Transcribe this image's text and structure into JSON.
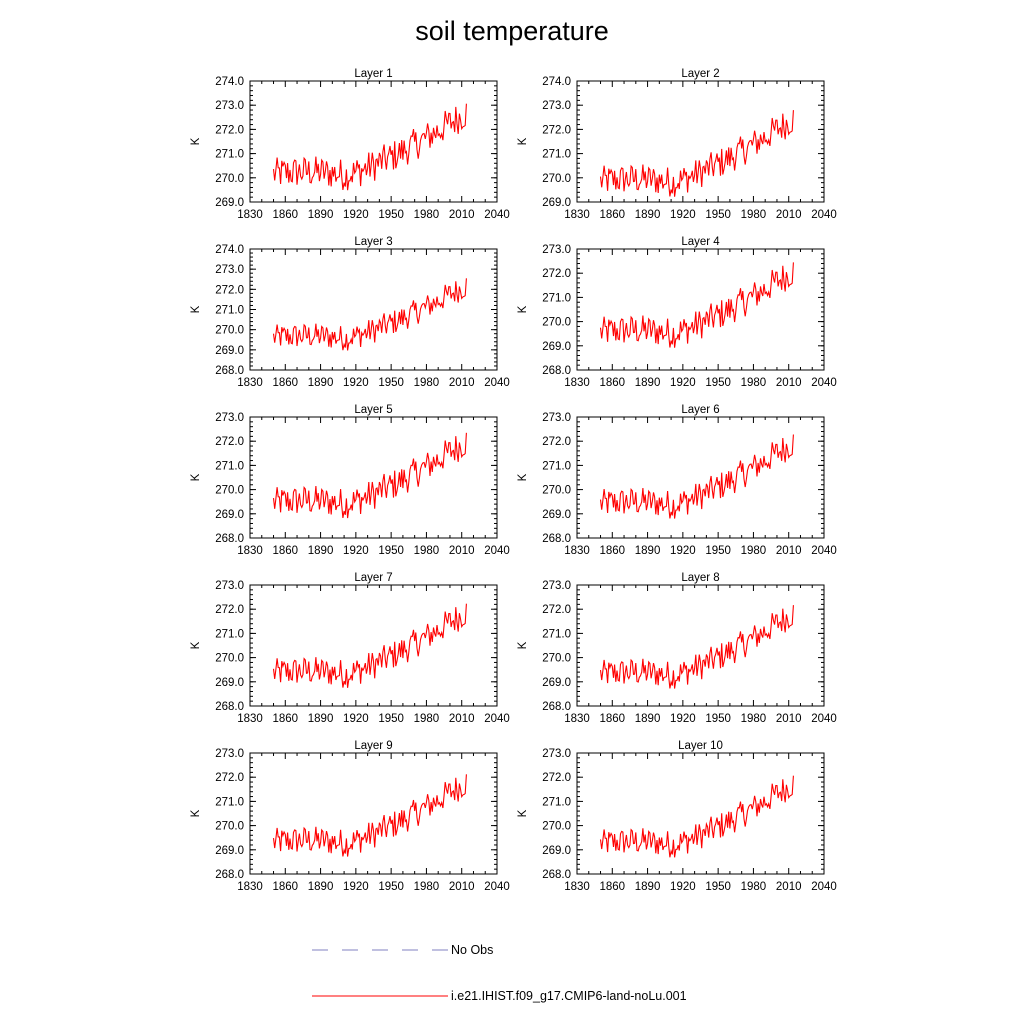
{
  "figure": {
    "title": "soil temperature",
    "legend": [
      {
        "label": "No Obs",
        "color": "#8080c0",
        "style": "dashed"
      },
      {
        "label": "i.e21.IHIST.f09_g17.CMIP6-land-noLu.001",
        "color": "#ff0000",
        "style": "solid"
      }
    ]
  },
  "chart_data": [
    {
      "type": "line",
      "title": "Layer 1",
      "xlabel": "",
      "ylabel": "K",
      "xlim": [
        1830,
        2040
      ],
      "ylim": [
        269.0,
        274.0
      ],
      "xticks": [
        "1830",
        "1860",
        "1890",
        "1920",
        "1950",
        "1980",
        "2010",
        "2040"
      ],
      "yticks": [
        "269.0",
        "270.0",
        "271.0",
        "272.0",
        "273.0",
        "274.0"
      ],
      "series": [
        {
          "color": "#ff0000",
          "x_range": [
            1850,
            2014
          ],
          "base": 270.15,
          "end": 272.7,
          "noise": 0.42
        }
      ]
    },
    {
      "type": "line",
      "title": "Layer 2",
      "xlabel": "",
      "ylabel": "K",
      "xlim": [
        1830,
        2040
      ],
      "ylim": [
        269.0,
        274.0
      ],
      "xticks": [
        "1830",
        "1860",
        "1890",
        "1920",
        "1950",
        "1980",
        "2010",
        "2040"
      ],
      "yticks": [
        "269.0",
        "270.0",
        "271.0",
        "272.0",
        "273.0",
        "274.0"
      ],
      "series": [
        {
          "color": "#ff0000",
          "x_range": [
            1850,
            2014
          ],
          "base": 269.85,
          "end": 272.45,
          "noise": 0.4
        }
      ]
    },
    {
      "type": "line",
      "title": "Layer 3",
      "xlabel": "",
      "ylabel": "K",
      "xlim": [
        1830,
        2040
      ],
      "ylim": [
        268.0,
        274.0
      ],
      "xticks": [
        "1830",
        "1860",
        "1890",
        "1920",
        "1950",
        "1980",
        "2010",
        "2040"
      ],
      "yticks": [
        "268.0",
        "269.0",
        "270.0",
        "271.0",
        "272.0",
        "273.0",
        "274.0"
      ],
      "series": [
        {
          "color": "#ff0000",
          "x_range": [
            1850,
            2014
          ],
          "base": 269.6,
          "end": 272.2,
          "noise": 0.4
        }
      ]
    },
    {
      "type": "line",
      "title": "Layer 4",
      "xlabel": "",
      "ylabel": "K",
      "xlim": [
        1830,
        2040
      ],
      "ylim": [
        268.0,
        273.0
      ],
      "xticks": [
        "1830",
        "1860",
        "1890",
        "1920",
        "1950",
        "1980",
        "2010",
        "2040"
      ],
      "yticks": [
        "268.0",
        "269.0",
        "270.0",
        "271.0",
        "272.0",
        "273.0"
      ],
      "series": [
        {
          "color": "#ff0000",
          "x_range": [
            1850,
            2014
          ],
          "base": 269.55,
          "end": 272.1,
          "noise": 0.4
        }
      ]
    },
    {
      "type": "line",
      "title": "Layer 5",
      "xlabel": "",
      "ylabel": "K",
      "xlim": [
        1830,
        2040
      ],
      "ylim": [
        268.0,
        273.0
      ],
      "xticks": [
        "1830",
        "1860",
        "1890",
        "1920",
        "1950",
        "1980",
        "2010",
        "2040"
      ],
      "yticks": [
        "268.0",
        "269.0",
        "270.0",
        "271.0",
        "272.0",
        "273.0"
      ],
      "series": [
        {
          "color": "#ff0000",
          "x_range": [
            1850,
            2014
          ],
          "base": 269.45,
          "end": 272.0,
          "noise": 0.4
        }
      ]
    },
    {
      "type": "line",
      "title": "Layer 6",
      "xlabel": "",
      "ylabel": "K",
      "xlim": [
        1830,
        2040
      ],
      "ylim": [
        268.0,
        273.0
      ],
      "xticks": [
        "1830",
        "1860",
        "1890",
        "1920",
        "1950",
        "1980",
        "2010",
        "2040"
      ],
      "yticks": [
        "268.0",
        "269.0",
        "270.0",
        "271.0",
        "272.0",
        "273.0"
      ],
      "series": [
        {
          "color": "#ff0000",
          "x_range": [
            1850,
            2014
          ],
          "base": 269.4,
          "end": 271.95,
          "noise": 0.38
        }
      ]
    },
    {
      "type": "line",
      "title": "Layer 7",
      "xlabel": "",
      "ylabel": "K",
      "xlim": [
        1830,
        2040
      ],
      "ylim": [
        268.0,
        273.0
      ],
      "xticks": [
        "1830",
        "1860",
        "1890",
        "1920",
        "1950",
        "1980",
        "2010",
        "2040"
      ],
      "yticks": [
        "268.0",
        "269.0",
        "270.0",
        "271.0",
        "272.0",
        "273.0"
      ],
      "series": [
        {
          "color": "#ff0000",
          "x_range": [
            1850,
            2014
          ],
          "base": 269.35,
          "end": 271.9,
          "noise": 0.38
        }
      ]
    },
    {
      "type": "line",
      "title": "Layer 8",
      "xlabel": "",
      "ylabel": "K",
      "xlim": [
        1830,
        2040
      ],
      "ylim": [
        268.0,
        273.0
      ],
      "xticks": [
        "1830",
        "1860",
        "1890",
        "1920",
        "1950",
        "1980",
        "2010",
        "2040"
      ],
      "yticks": [
        "268.0",
        "269.0",
        "270.0",
        "271.0",
        "272.0",
        "273.0"
      ],
      "series": [
        {
          "color": "#ff0000",
          "x_range": [
            1850,
            2014
          ],
          "base": 269.3,
          "end": 271.85,
          "noise": 0.37
        }
      ]
    },
    {
      "type": "line",
      "title": "Layer 9",
      "xlabel": "",
      "ylabel": "K",
      "xlim": [
        1830,
        2040
      ],
      "ylim": [
        268.0,
        273.0
      ],
      "xticks": [
        "1830",
        "1860",
        "1890",
        "1920",
        "1950",
        "1980",
        "2010",
        "2040"
      ],
      "yticks": [
        "268.0",
        "269.0",
        "270.0",
        "271.0",
        "272.0",
        "273.0"
      ],
      "series": [
        {
          "color": "#ff0000",
          "x_range": [
            1850,
            2014
          ],
          "base": 269.3,
          "end": 271.8,
          "noise": 0.37
        }
      ]
    },
    {
      "type": "line",
      "title": "Layer 10",
      "xlabel": "",
      "ylabel": "K",
      "xlim": [
        1830,
        2040
      ],
      "ylim": [
        268.0,
        273.0
      ],
      "xticks": [
        "1830",
        "1860",
        "1890",
        "1920",
        "1950",
        "1980",
        "2010",
        "2040"
      ],
      "yticks": [
        "268.0",
        "269.0",
        "270.0",
        "271.0",
        "272.0",
        "273.0"
      ],
      "series": [
        {
          "color": "#ff0000",
          "x_range": [
            1850,
            2014
          ],
          "base": 269.25,
          "end": 271.75,
          "noise": 0.36
        }
      ]
    }
  ]
}
